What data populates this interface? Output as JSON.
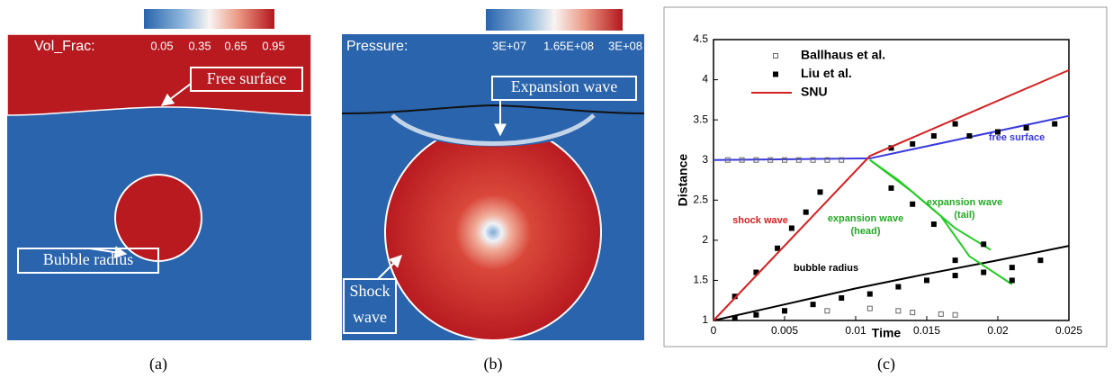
{
  "figure": {
    "panels": [
      {
        "label": "Vol_Frac:",
        "colorbar_ticks": [
          0.05,
          0.35,
          0.65,
          0.95
        ],
        "callouts": [
          {
            "lines": [
              "Free surface"
            ]
          },
          {
            "lines": [
              "Bubble radius"
            ]
          }
        ]
      },
      {
        "label": "Pressure:",
        "colorbar_ticks": [
          {
            "value": 30000000,
            "label": "3E+07"
          },
          {
            "value": 165000000,
            "label": "1.65E+08"
          },
          {
            "value": 300000000,
            "label": "3E+08"
          }
        ],
        "callouts": [
          {
            "lines": [
              "Expansion wave"
            ]
          },
          {
            "lines": [
              "Shock",
              "wave"
            ]
          }
        ]
      }
    ],
    "captions": [
      "(a)",
      "(b)",
      "(c)"
    ]
  },
  "chart_data": {
    "type": "line",
    "xlabel": "Time",
    "ylabel": "Distance",
    "xlim": [
      0,
      0.025
    ],
    "ylim": [
      1,
      4.5
    ],
    "xticks": [
      0,
      0.005,
      0.01,
      0.015,
      0.02,
      0.025
    ],
    "yticks": [
      1,
      1.5,
      2,
      2.5,
      3,
      3.5,
      4,
      4.5
    ],
    "series": [
      {
        "name": "Ballhaus et al.",
        "color": "#666666",
        "marker": "open-square",
        "x": [
          0.001,
          0.002,
          0.003,
          0.004,
          0.005,
          0.006,
          0.007,
          0.008,
          0.009,
          0.005,
          0.008,
          0.011,
          0.013,
          0.014,
          0.016,
          0.017
        ],
        "values": [
          3,
          3,
          3,
          3,
          3,
          3,
          3,
          3,
          3,
          1.12,
          1.12,
          1.15,
          1.12,
          1.1,
          1.08,
          1.07
        ]
      },
      {
        "name": "Liu et al.",
        "color": "#000000",
        "marker": "square",
        "x": [
          0.0015,
          0.003,
          0.0045,
          0.0055,
          0.0065,
          0.0075,
          0.0015,
          0.003,
          0.005,
          0.007,
          0.009,
          0.011,
          0.013,
          0.015,
          0.017,
          0.019,
          0.021,
          0.023,
          0.0125,
          0.014,
          0.0155,
          0.017,
          0.018,
          0.02,
          0.022,
          0.024,
          0.0125,
          0.014,
          0.0155,
          0.017,
          0.019,
          0.021
        ],
        "values": [
          1.3,
          1.6,
          1.9,
          2.15,
          2.35,
          2.6,
          1.03,
          1.07,
          1.12,
          1.2,
          1.28,
          1.33,
          1.42,
          1.5,
          1.56,
          1.6,
          1.66,
          1.75,
          3.15,
          3.2,
          3.3,
          3.45,
          3.3,
          3.35,
          3.4,
          3.45,
          2.65,
          2.45,
          2.2,
          1.75,
          1.95,
          1.5
        ]
      },
      {
        "name": "SNU",
        "color": "#d62020",
        "marker": "line",
        "x": [
          0,
          0.011,
          0.025
        ],
        "values": [
          1,
          3.05,
          4.12
        ]
      }
    ],
    "lines": [
      {
        "color": "#3a3ae0",
        "x": [
          0,
          0.011,
          0.025
        ],
        "values": [
          3,
          3.02,
          3.55
        ]
      },
      {
        "color": "#000000",
        "x": [
          0,
          0.005,
          0.01,
          0.015,
          0.02,
          0.025
        ],
        "values": [
          1,
          1.2,
          1.4,
          1.58,
          1.75,
          1.93
        ]
      },
      {
        "color": "#22cc22",
        "x": [
          0.011,
          0.013,
          0.016,
          0.018,
          0.021
        ],
        "values": [
          3.0,
          2.75,
          2.3,
          1.8,
          1.45
        ]
      },
      {
        "color": "#22cc22",
        "x": [
          0.011,
          0.014,
          0.017,
          0.0195
        ],
        "values": [
          3.0,
          2.6,
          2.15,
          1.88
        ]
      }
    ],
    "annotations": [
      {
        "lines": [
          "free surface"
        ],
        "color": "#3a3ae0"
      },
      {
        "lines": [
          "shock wave"
        ],
        "color": "#d62020"
      },
      {
        "lines": [
          "expansion wave",
          "(tail)"
        ],
        "color": "#22aa22"
      },
      {
        "lines": [
          "expansion wave",
          "(head)"
        ],
        "color": "#22aa22"
      },
      {
        "lines": [
          "bubble radius"
        ],
        "color": "#000000"
      }
    ]
  }
}
